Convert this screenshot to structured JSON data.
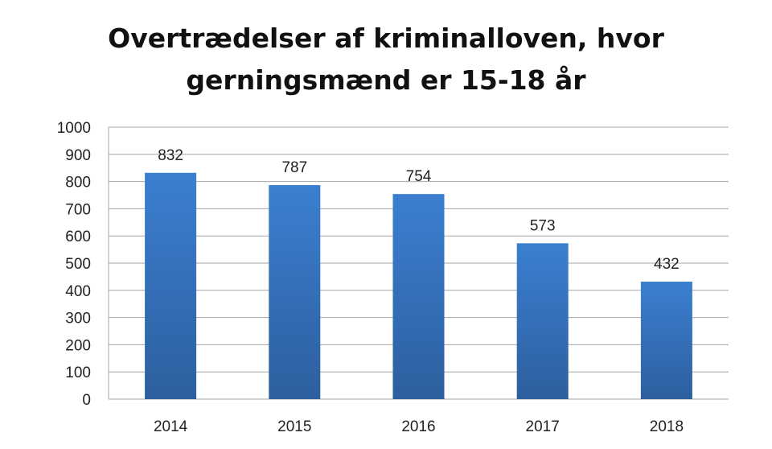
{
  "chart_data": {
    "type": "bar",
    "title_line1": "Overtrædelser af kriminalloven, hvor",
    "title_line2": "gerningsmænd er 15-18 år",
    "categories": [
      "2014",
      "2015",
      "2016",
      "2017",
      "2018"
    ],
    "values": [
      832,
      787,
      754,
      573,
      432
    ],
    "data_labels": [
      "832",
      "787",
      "754",
      "573",
      "432"
    ],
    "y_ticks": [
      "0",
      "100",
      "200",
      "300",
      "400",
      "500",
      "600",
      "700",
      "800",
      "900",
      "1000"
    ],
    "ylim": [
      0,
      1000
    ],
    "grid": true,
    "legend": "none",
    "bar_color_top": "#3b7fd1",
    "bar_color_bottom": "#2d5f9e",
    "grid_color": "#a6a6a6"
  }
}
